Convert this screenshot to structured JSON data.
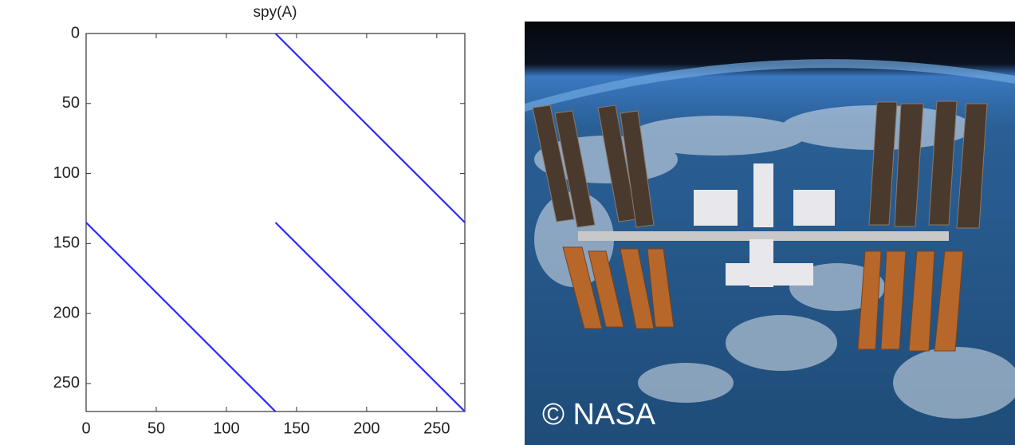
{
  "chart_data": {
    "type": "spy",
    "title": "spy(A)",
    "xlim": [
      0,
      270
    ],
    "ylim": [
      0,
      270
    ],
    "y_inverted": true,
    "xticks": [
      0,
      50,
      100,
      150,
      200,
      250
    ],
    "yticks": [
      0,
      50,
      100,
      150,
      200,
      250
    ],
    "color": "#2b2bff",
    "segments": [
      {
        "x": [
          135,
          270
        ],
        "y": [
          0,
          135
        ]
      },
      {
        "x": [
          0,
          135
        ],
        "y": [
          135,
          270
        ]
      },
      {
        "x": [
          135,
          270
        ],
        "y": [
          135,
          270
        ]
      }
    ]
  },
  "photo": {
    "caption": "© NASA"
  }
}
